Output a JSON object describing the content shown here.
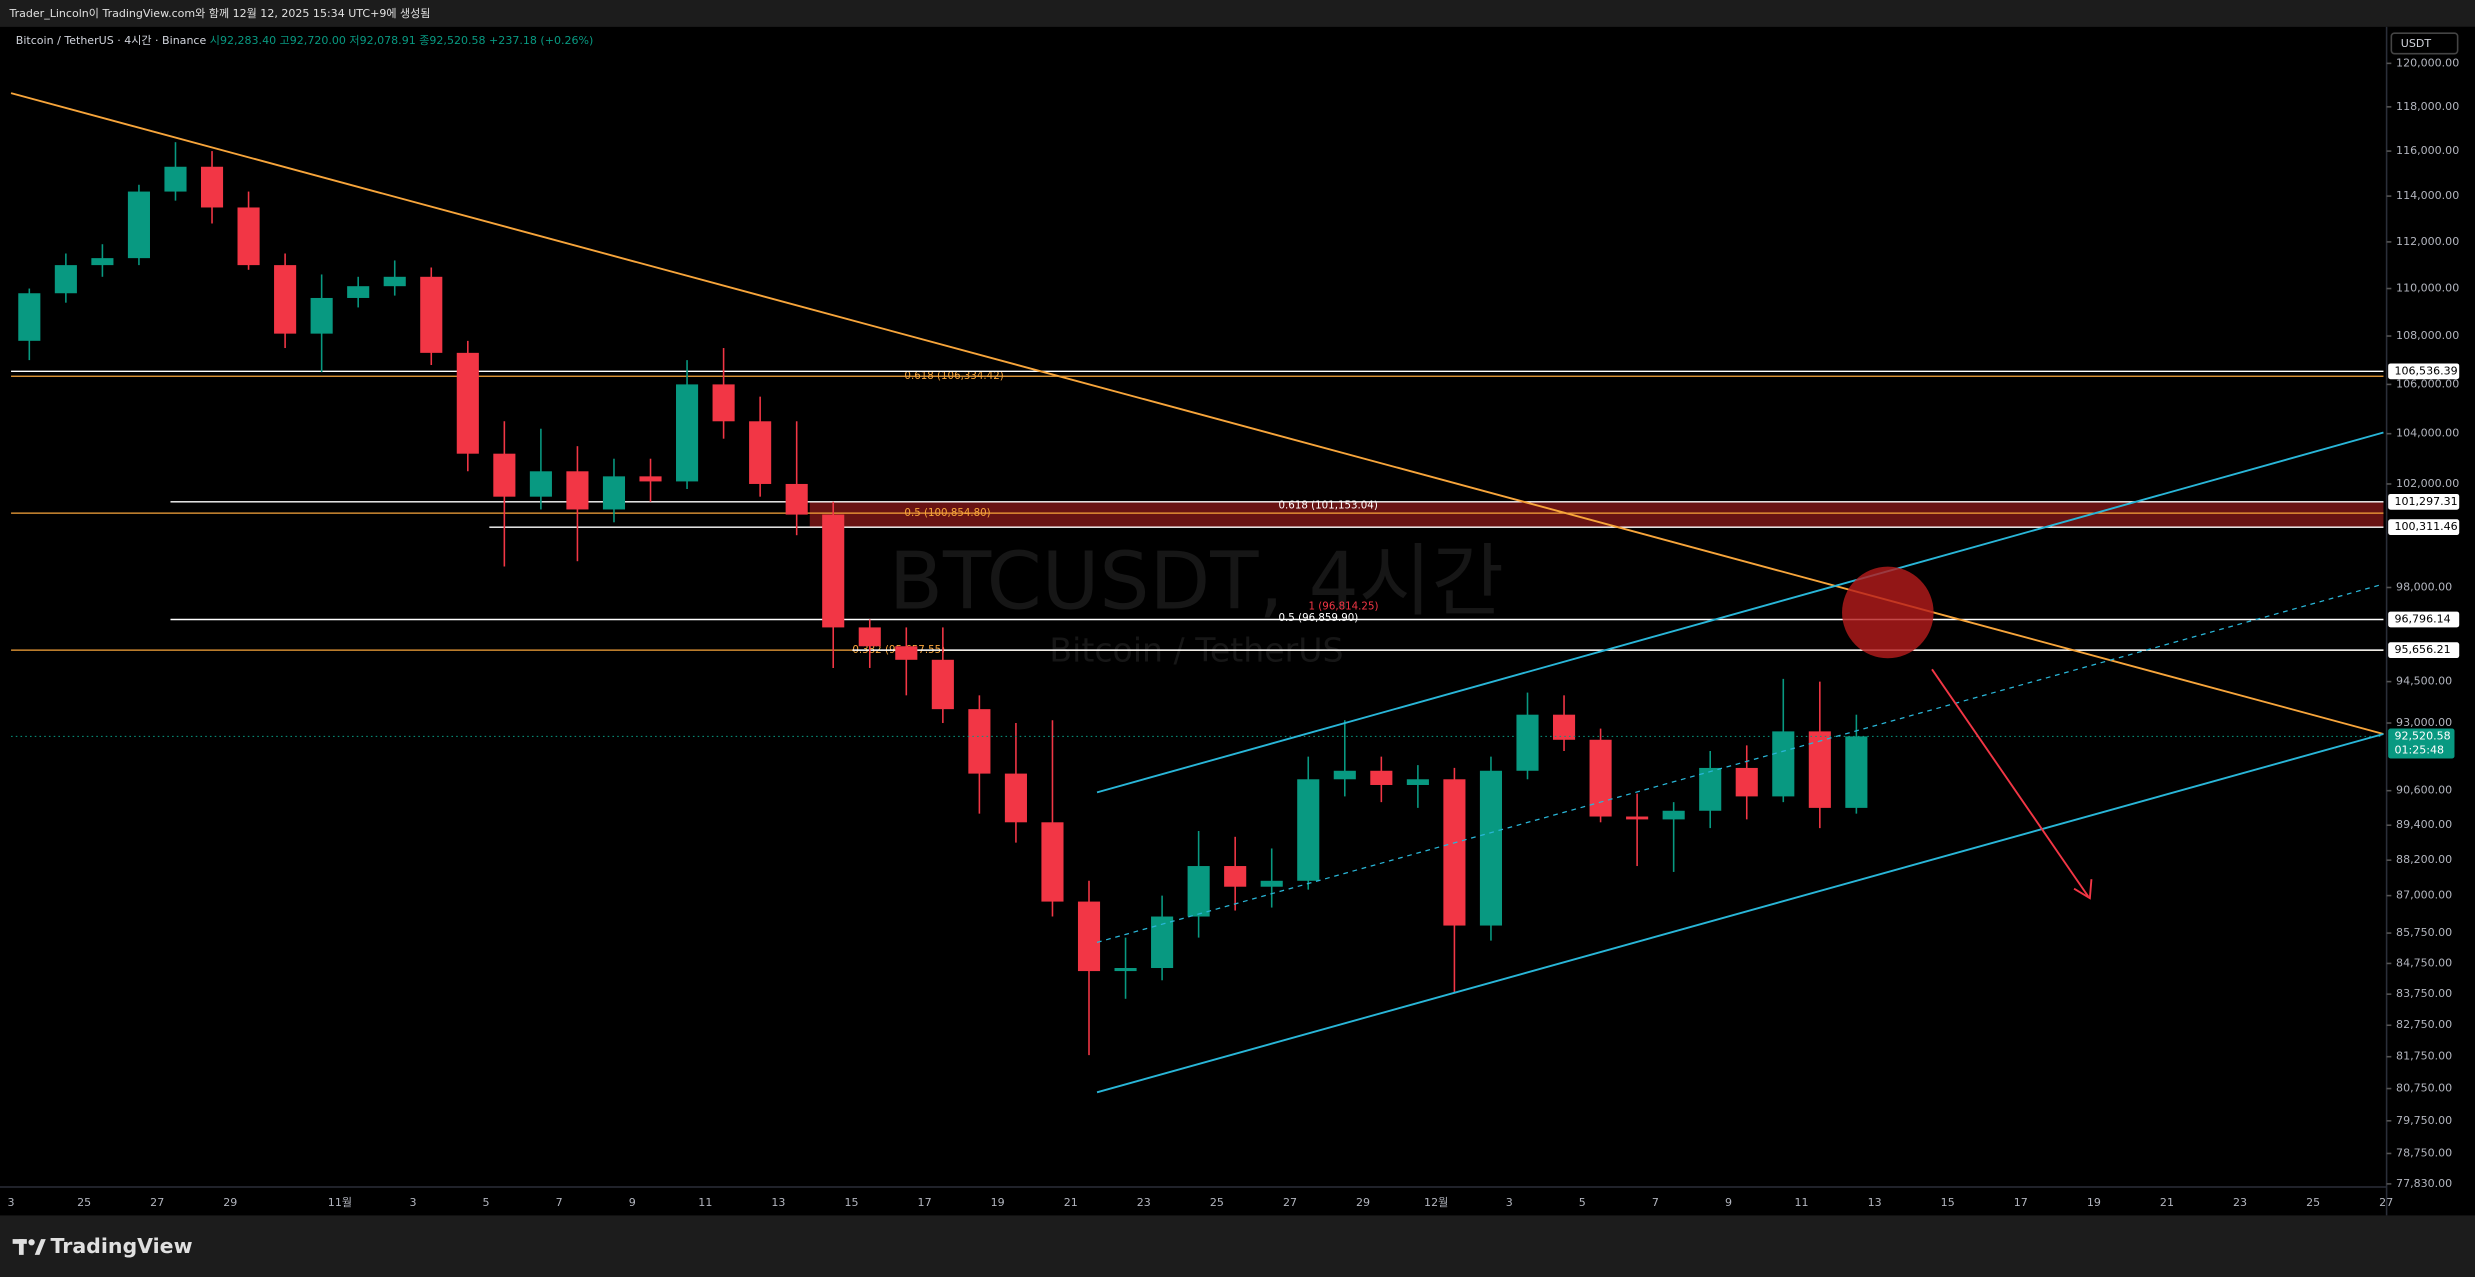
{
  "header": {
    "caption": "Trader_Lincoln이 TradingView.com와 함께 12월 12, 2025 15:34 UTC+9에 생성됨"
  },
  "chart_data": {
    "type": "candlestick",
    "legend": {
      "symbol": "Bitcoin / TetherUS · 4시간 · Binance",
      "open": "시92,283.40",
      "high": "고92,720.00",
      "low": "저92,078.91",
      "close": "종92,520.58",
      "change": "+237.18 (+0.26%)"
    },
    "watermark": "BTCUSDT, 4시간",
    "watermark_sub": "Bitcoin / TetherUS",
    "currency": "USDT",
    "up_color": "#089981",
    "down_color": "#f23645",
    "log_scale": true,
    "ylim": [
      77736,
      121630
    ],
    "yticks": [
      {
        "value": 120000,
        "label": "120,000.00"
      },
      {
        "value": 118000,
        "label": "118,000.00"
      },
      {
        "value": 116000,
        "label": "116,000.00"
      },
      {
        "value": 114000,
        "label": "114,000.00"
      },
      {
        "value": 112000,
        "label": "112,000.00"
      },
      {
        "value": 110000,
        "label": "110,000.00"
      },
      {
        "value": 108000,
        "label": "108,000.00"
      },
      {
        "value": 106000,
        "label": "106,000.00"
      },
      {
        "value": 104000,
        "label": "104,000.00"
      },
      {
        "value": 102000,
        "label": "102,000.00"
      },
      {
        "value": 98000,
        "label": "98,000.00"
      },
      {
        "value": 94500,
        "label": "94,500.00"
      },
      {
        "value": 93000,
        "label": "93,000.00"
      },
      {
        "value": 90600,
        "label": "90,600.00"
      },
      {
        "value": 89400,
        "label": "89,400.00"
      },
      {
        "value": 88200,
        "label": "88,200.00"
      },
      {
        "value": 87000,
        "label": "87,000.00"
      },
      {
        "value": 85750,
        "label": "85,750.00"
      },
      {
        "value": 84750,
        "label": "84,750.00"
      },
      {
        "value": 83750,
        "label": "83,750.00"
      },
      {
        "value": 82750,
        "label": "82,750.00"
      },
      {
        "value": 81750,
        "label": "81,750.00"
      },
      {
        "value": 80750,
        "label": "80,750.00"
      },
      {
        "value": 79750,
        "label": "79,750.00"
      },
      {
        "value": 78750,
        "label": "78,750.00"
      },
      {
        "value": 77830,
        "label": "77,830.00"
      }
    ],
    "xtick_labels": [
      "3",
      "25",
      "27",
      "29",
      "11월",
      "3",
      "5",
      "7",
      "9",
      "11",
      "13",
      "15",
      "17",
      "19",
      "21",
      "23",
      "25",
      "27",
      "29",
      "12월",
      "3",
      "5",
      "7",
      "9",
      "11",
      "13",
      "15",
      "17",
      "19",
      "21",
      "23",
      "25",
      "27"
    ],
    "open": [
      107800,
      109800,
      111000,
      111300,
      114200,
      115300,
      113500,
      111000,
      108100,
      109600,
      110100,
      110500,
      107300,
      103200,
      101500,
      102500,
      101000,
      102300,
      102100,
      106000,
      104500,
      102000,
      100800,
      96500,
      95800,
      95300,
      93500,
      91200,
      89500,
      86800,
      84500,
      84600,
      86300,
      88000,
      87300,
      87500,
      91000,
      91300,
      90800,
      91000,
      86000,
      91300,
      93300,
      92400,
      89700,
      89600,
      89900,
      91400,
      90400,
      92700,
      90000
    ],
    "high": [
      110000,
      111500,
      111900,
      114500,
      116400,
      116000,
      114200,
      111500,
      110600,
      110500,
      111200,
      110900,
      107800,
      104500,
      104200,
      103500,
      103000,
      103000,
      107000,
      107500,
      105500,
      104500,
      101300,
      96800,
      96500,
      96500,
      94000,
      93000,
      93100,
      87500,
      85600,
      87000,
      89200,
      89000,
      88600,
      91800,
      93100,
      91800,
      91500,
      91400,
      91800,
      94100,
      94000,
      92800,
      90500,
      90200,
      92000,
      92200,
      94600,
      94500,
      93300
    ],
    "low": [
      107000,
      109400,
      110500,
      111000,
      113800,
      112800,
      110800,
      107500,
      106500,
      109200,
      109700,
      106800,
      102500,
      98800,
      101000,
      99000,
      100500,
      101300,
      101800,
      103800,
      101500,
      100000,
      95000,
      95000,
      94000,
      93000,
      89800,
      88800,
      86300,
      81800,
      83600,
      84200,
      85600,
      86500,
      86600,
      87200,
      90400,
      90200,
      90000,
      83800,
      85500,
      91000,
      92000,
      89500,
      88000,
      87800,
      89300,
      89600,
      90200,
      89300,
      89800
    ],
    "close": [
      109800,
      111000,
      111300,
      114200,
      115300,
      113500,
      111000,
      108100,
      109600,
      110100,
      110500,
      107300,
      103200,
      101500,
      102500,
      101000,
      102300,
      102100,
      106000,
      104500,
      102000,
      100800,
      96500,
      95800,
      95300,
      93500,
      91200,
      89500,
      86800,
      84500,
      84600,
      86300,
      88000,
      87300,
      87500,
      91000,
      91300,
      90800,
      91000,
      86000,
      91300,
      93300,
      92400,
      89700,
      89600,
      89900,
      91400,
      90400,
      92700,
      90000,
      92520.58
    ],
    "levels": [
      {
        "value": 106536.39,
        "label": "106,536.39",
        "color": "#ffffff"
      },
      {
        "value": 101297.31,
        "label": "101,297.31",
        "color": "#ffffff"
      },
      {
        "value": 100311.46,
        "label": "100,311.46",
        "color": "#ffffff"
      },
      {
        "value": 96796.14,
        "label": "96,796.14",
        "color": "#ffffff"
      },
      {
        "value": 95656.21,
        "label": "95,656.21",
        "color": "#ffffff"
      }
    ],
    "zone_color": "#8b1a1a",
    "fibs": [
      {
        "text": "0.618 (106,334.42)",
        "value": 106334.42,
        "color": "#f7a53b"
      },
      {
        "text": "0.5 (100,854.80)",
        "value": 100854.8,
        "color": "#f7a53b"
      },
      {
        "text": "0.382 (95,657.55)",
        "value": 95657.55,
        "color": "#f7a53b"
      },
      {
        "text": "0.618 (101,153.04)",
        "value": 101153.04,
        "color": "#ffffff"
      },
      {
        "text": "0.5 (96,859.90)",
        "value": 96859.9,
        "color": "#ffffff"
      },
      {
        "text": "1 (96,814.25)",
        "value": 96814.25,
        "color": "#f23645"
      }
    ],
    "last_price": {
      "value": 92520.58,
      "label": "92,520.58",
      "countdown": "01:25:48",
      "color": "#089981"
    }
  },
  "footer": {
    "logo": "TradingView"
  }
}
